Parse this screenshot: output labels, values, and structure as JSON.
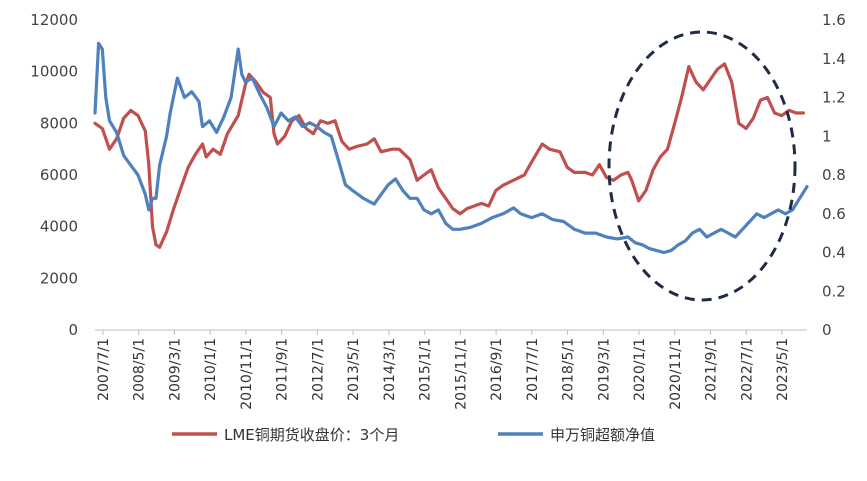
{
  "chart_data": {
    "type": "line",
    "title": "",
    "xlabel": "",
    "ylabel": "",
    "y_left_lim": [
      0,
      12000
    ],
    "y_right_lim": [
      0,
      1.6
    ],
    "y_left_ticks": [
      0,
      2000,
      4000,
      6000,
      8000,
      10000,
      12000
    ],
    "y_right_ticks": [
      0,
      0.2,
      0.4,
      0.6,
      0.8,
      1,
      1.2,
      1.4,
      1.6
    ],
    "x_tick_labels": [
      "2007/7/1",
      "2008/5/1",
      "2009/3/1",
      "2010/1/1",
      "2010/11/1",
      "2011/9/1",
      "2012/7/1",
      "2013/5/1",
      "2014/3/1",
      "2015/1/1",
      "2015/11/1",
      "2016/9/1",
      "2017/7/1",
      "2018/5/1",
      "2019/3/1",
      "2020/1/1",
      "2020/11/1",
      "2021/9/1",
      "2022/7/1",
      "2023/5/1"
    ],
    "x_range": [
      "2007-07-01",
      "2024-02-01"
    ],
    "grid": false,
    "legend_position": "bottom",
    "annotation": "dashed-ellipse-2020-2023",
    "series": [
      {
        "name": "LME铜期货收盘价：3个月",
        "axis": "left",
        "color": "#c0504d",
        "x": [
          "2007-07-01",
          "2007-09-01",
          "2007-11-01",
          "2008-01-01",
          "2008-03-01",
          "2008-05-01",
          "2008-07-01",
          "2008-09-01",
          "2008-10-01",
          "2008-11-01",
          "2008-12-01",
          "2009-01-01",
          "2009-03-01",
          "2009-05-01",
          "2009-07-01",
          "2009-09-01",
          "2009-11-01",
          "2010-01-01",
          "2010-02-01",
          "2010-04-01",
          "2010-06-01",
          "2010-08-01",
          "2010-11-01",
          "2011-01-01",
          "2011-02-01",
          "2011-04-01",
          "2011-06-01",
          "2011-08-01",
          "2011-09-01",
          "2011-10-01",
          "2011-12-01",
          "2012-02-01",
          "2012-04-01",
          "2012-06-01",
          "2012-08-01",
          "2012-10-01",
          "2012-12-01",
          "2013-02-01",
          "2013-04-01",
          "2013-06-01",
          "2013-08-01",
          "2013-11-01",
          "2014-01-01",
          "2014-03-01",
          "2014-06-01",
          "2014-08-01",
          "2014-11-01",
          "2015-01-01",
          "2015-03-01",
          "2015-05-01",
          "2015-07-01",
          "2015-09-01",
          "2015-11-01",
          "2016-01-01",
          "2016-03-01",
          "2016-05-01",
          "2016-07-01",
          "2016-09-01",
          "2016-11-01",
          "2017-01-01",
          "2017-04-01",
          "2017-07-01",
          "2017-09-01",
          "2017-12-01",
          "2018-02-01",
          "2018-05-01",
          "2018-07-01",
          "2018-09-01",
          "2018-12-01",
          "2019-02-01",
          "2019-04-01",
          "2019-06-01",
          "2019-08-01",
          "2019-10-01",
          "2019-12-01",
          "2020-01-01",
          "2020-03-01",
          "2020-05-01",
          "2020-07-01",
          "2020-09-01",
          "2020-11-01",
          "2021-01-01",
          "2021-03-01",
          "2021-05-01",
          "2021-07-01",
          "2021-09-01",
          "2021-11-01",
          "2022-01-01",
          "2022-03-01",
          "2022-05-01",
          "2022-07-01",
          "2022-09-01",
          "2022-11-01",
          "2023-01-01",
          "2023-03-01",
          "2023-05-01",
          "2023-07-01",
          "2023-09-01",
          "2023-11-01",
          "2024-01-01"
        ],
        "values": [
          8000,
          7800,
          7000,
          7400,
          8200,
          8500,
          8300,
          7700,
          6400,
          4000,
          3300,
          3200,
          3800,
          4700,
          5500,
          6300,
          6800,
          7200,
          6700,
          7000,
          6800,
          7600,
          8300,
          9500,
          9900,
          9600,
          9200,
          9000,
          7600,
          7200,
          7500,
          8100,
          8300,
          7800,
          7600,
          8100,
          8000,
          8100,
          7300,
          7000,
          7100,
          7200,
          7400,
          6900,
          7000,
          7000,
          6600,
          5800,
          6000,
          6200,
          5500,
          5100,
          4700,
          4500,
          4700,
          4800,
          4900,
          4800,
          5400,
          5600,
          5800,
          6000,
          6500,
          7200,
          7000,
          6900,
          6300,
          6100,
          6100,
          6000,
          6400,
          5900,
          5800,
          6000,
          6100,
          5800,
          5000,
          5400,
          6200,
          6700,
          7000,
          8000,
          9000,
          10200,
          9600,
          9300,
          9700,
          10100,
          10300,
          9600,
          8000,
          7800,
          8200,
          8900,
          9000,
          8400,
          8300,
          8500,
          8400,
          8400
        ]
      },
      {
        "name": "申万铜超额净值",
        "axis": "right",
        "color": "#4f81bd",
        "x": [
          "2007-07-01",
          "2007-08-01",
          "2007-09-01",
          "2007-10-01",
          "2007-11-01",
          "2008-01-01",
          "2008-03-01",
          "2008-05-01",
          "2008-07-01",
          "2008-09-01",
          "2008-10-01",
          "2008-11-01",
          "2008-12-01",
          "2009-01-01",
          "2009-03-01",
          "2009-04-01",
          "2009-06-01",
          "2009-08-01",
          "2009-10-01",
          "2009-12-01",
          "2010-01-01",
          "2010-03-01",
          "2010-05-01",
          "2010-07-01",
          "2010-09-01",
          "2010-11-01",
          "2010-12-01",
          "2011-01-01",
          "2011-03-01",
          "2011-05-01",
          "2011-07-01",
          "2011-09-01",
          "2011-11-01",
          "2012-01-01",
          "2012-03-01",
          "2012-05-01",
          "2012-07-01",
          "2012-09-01",
          "2012-11-01",
          "2013-01-01",
          "2013-03-01",
          "2013-05-01",
          "2013-07-01",
          "2013-10-01",
          "2014-01-01",
          "2014-03-01",
          "2014-05-01",
          "2014-07-01",
          "2014-09-01",
          "2014-11-01",
          "2015-01-01",
          "2015-03-01",
          "2015-05-01",
          "2015-07-01",
          "2015-09-01",
          "2015-11-01",
          "2016-01-01",
          "2016-04-01",
          "2016-07-01",
          "2016-10-01",
          "2017-01-01",
          "2017-04-01",
          "2017-06-01",
          "2017-09-01",
          "2017-12-01",
          "2018-03-01",
          "2018-06-01",
          "2018-09-01",
          "2018-12-01",
          "2019-03-01",
          "2019-06-01",
          "2019-09-01",
          "2019-12-01",
          "2020-02-01",
          "2020-04-01",
          "2020-06-01",
          "2020-08-01",
          "2020-10-01",
          "2020-12-01",
          "2021-02-01",
          "2021-04-01",
          "2021-06-01",
          "2021-08-01",
          "2021-10-01",
          "2021-12-01",
          "2022-02-01",
          "2022-04-01",
          "2022-06-01",
          "2022-08-01",
          "2022-10-01",
          "2022-12-01",
          "2023-02-01",
          "2023-04-01",
          "2023-06-01",
          "2023-08-01",
          "2023-10-01",
          "2023-12-01",
          "2024-02-01"
        ],
        "values": [
          1.12,
          1.48,
          1.45,
          1.2,
          1.08,
          1.02,
          0.9,
          0.85,
          0.8,
          0.7,
          0.62,
          0.68,
          0.68,
          0.85,
          1.0,
          1.12,
          1.3,
          1.2,
          1.23,
          1.18,
          1.05,
          1.08,
          1.02,
          1.1,
          1.2,
          1.45,
          1.32,
          1.28,
          1.3,
          1.22,
          1.15,
          1.05,
          1.12,
          1.08,
          1.1,
          1.05,
          1.07,
          1.05,
          1.02,
          1.0,
          0.88,
          0.75,
          0.72,
          0.68,
          0.65,
          0.7,
          0.75,
          0.78,
          0.72,
          0.68,
          0.68,
          0.62,
          0.6,
          0.62,
          0.55,
          0.52,
          0.52,
          0.53,
          0.55,
          0.58,
          0.6,
          0.63,
          0.6,
          0.58,
          0.6,
          0.57,
          0.56,
          0.52,
          0.5,
          0.5,
          0.48,
          0.47,
          0.48,
          0.45,
          0.44,
          0.42,
          0.41,
          0.4,
          0.41,
          0.44,
          0.46,
          0.5,
          0.52,
          0.48,
          0.5,
          0.52,
          0.5,
          0.48,
          0.52,
          0.56,
          0.6,
          0.58,
          0.6,
          0.62,
          0.6,
          0.62,
          0.68,
          0.74
        ]
      }
    ]
  }
}
